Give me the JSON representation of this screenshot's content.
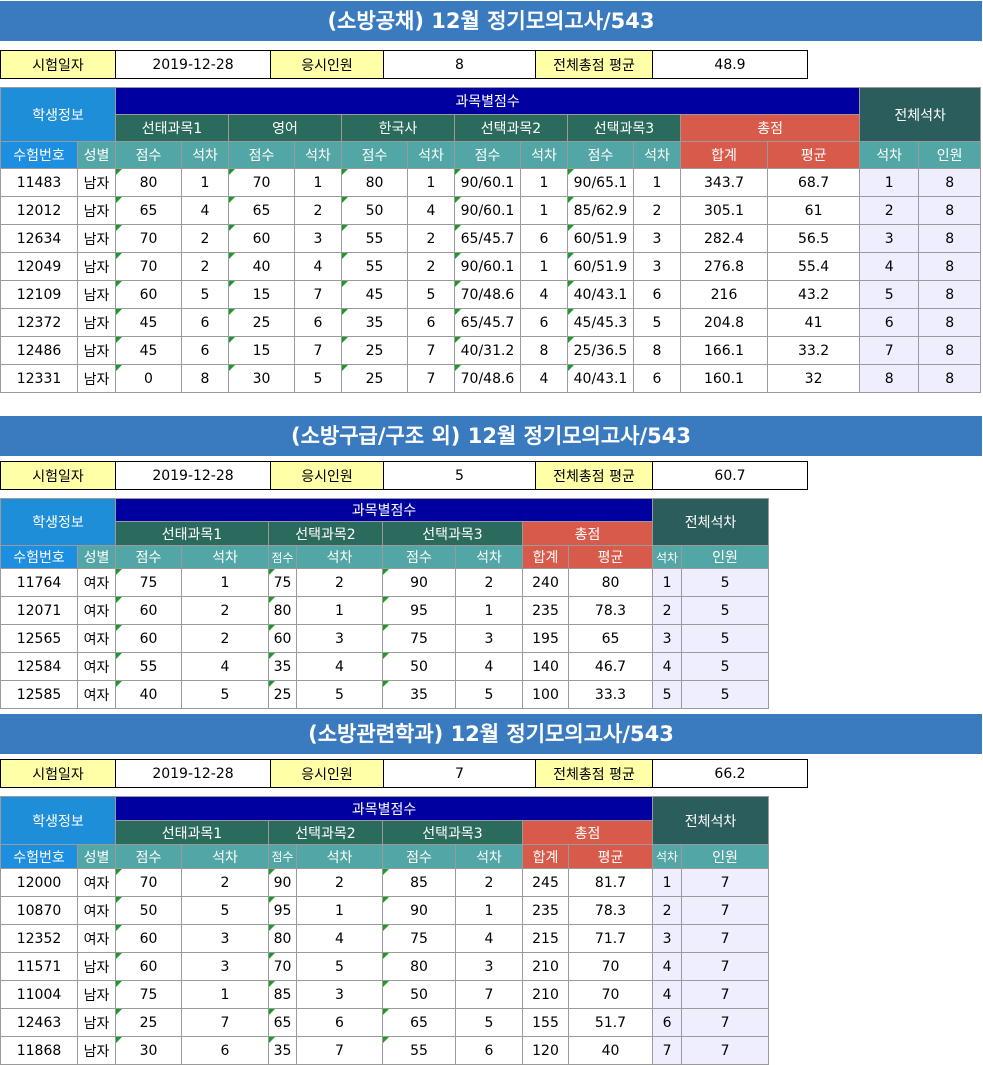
{
  "sections": [
    {
      "title": "(소방공채) 12월 정기모의고사/543",
      "info": {
        "date_label": "시험일자",
        "date": "2019-12-28",
        "count_label": "응시인원",
        "count": "8",
        "avg_label": "전체총점 평균",
        "avg": "48.9"
      },
      "group_student": "학생정보",
      "group_subject": "과목별점수",
      "group_rank": "전체석차",
      "subjects": [
        "선태과목1",
        "영어",
        "한국사",
        "선택과목2",
        "선택과목3"
      ],
      "total_label": "총점",
      "col_id": "수험번호",
      "col_sex": "성별",
      "col_score": "점수",
      "col_rank": "석차",
      "col_sum": "합계",
      "col_avg": "평균",
      "col_trank": "석차",
      "col_people": "인원",
      "rows": [
        [
          "11483",
          "남자",
          "80",
          "1",
          "70",
          "1",
          "80",
          "1",
          "90/60.1",
          "1",
          "90/65.1",
          "1",
          "343.7",
          "68.7",
          "1",
          "8"
        ],
        [
          "12012",
          "남자",
          "65",
          "4",
          "65",
          "2",
          "50",
          "4",
          "90/60.1",
          "1",
          "85/62.9",
          "2",
          "305.1",
          "61",
          "2",
          "8"
        ],
        [
          "12634",
          "남자",
          "70",
          "2",
          "60",
          "3",
          "55",
          "2",
          "65/45.7",
          "6",
          "60/51.9",
          "3",
          "282.4",
          "56.5",
          "3",
          "8"
        ],
        [
          "12049",
          "남자",
          "70",
          "2",
          "40",
          "4",
          "55",
          "2",
          "90/60.1",
          "1",
          "60/51.9",
          "3",
          "276.8",
          "55.4",
          "4",
          "8"
        ],
        [
          "12109",
          "남자",
          "60",
          "5",
          "15",
          "7",
          "45",
          "5",
          "70/48.6",
          "4",
          "40/43.1",
          "6",
          "216",
          "43.2",
          "5",
          "8"
        ],
        [
          "12372",
          "남자",
          "45",
          "6",
          "25",
          "6",
          "35",
          "6",
          "65/45.7",
          "6",
          "45/45.3",
          "5",
          "204.8",
          "41",
          "6",
          "8"
        ],
        [
          "12486",
          "남자",
          "45",
          "6",
          "15",
          "7",
          "25",
          "7",
          "40/31.2",
          "8",
          "25/36.5",
          "8",
          "166.1",
          "33.2",
          "7",
          "8"
        ],
        [
          "12331",
          "남자",
          "0",
          "8",
          "30",
          "5",
          "25",
          "7",
          "70/48.6",
          "4",
          "40/43.1",
          "6",
          "160.1",
          "32",
          "8",
          "8"
        ]
      ]
    },
    {
      "title": "(소방구급/구조 외) 12월 정기모의고사/543",
      "info": {
        "date_label": "시험일자",
        "date": "2019-12-28",
        "count_label": "응시인원",
        "count": "5",
        "avg_label": "전체총점 평균",
        "avg": "60.7"
      },
      "group_student": "학생정보",
      "group_subject": "과목별점수",
      "group_rank": "전체석차",
      "subjects": [
        "선태과목1",
        "선택과목2",
        "선택과목3"
      ],
      "total_label": "총점",
      "col_id": "수험번호",
      "col_sex": "성별",
      "col_score": "점수",
      "col_rank": "석차",
      "col_sum": "합계",
      "col_avg": "평균",
      "col_trank": "석차",
      "col_people": "인원",
      "rows": [
        [
          "11764",
          "여자",
          "75",
          "1",
          "75",
          "2",
          "90",
          "2",
          "240",
          "80",
          "1",
          "5"
        ],
        [
          "12071",
          "여자",
          "60",
          "2",
          "80",
          "1",
          "95",
          "1",
          "235",
          "78.3",
          "2",
          "5"
        ],
        [
          "12565",
          "여자",
          "60",
          "2",
          "60",
          "3",
          "75",
          "3",
          "195",
          "65",
          "3",
          "5"
        ],
        [
          "12584",
          "여자",
          "55",
          "4",
          "35",
          "4",
          "50",
          "4",
          "140",
          "46.7",
          "4",
          "5"
        ],
        [
          "12585",
          "여자",
          "40",
          "5",
          "25",
          "5",
          "35",
          "5",
          "100",
          "33.3",
          "5",
          "5"
        ]
      ]
    },
    {
      "title": "(소방관련학과) 12월 정기모의고사/543",
      "info": {
        "date_label": "시험일자",
        "date": "2019-12-28",
        "count_label": "응시인원",
        "count": "7",
        "avg_label": "전체총점 평균",
        "avg": "66.2"
      },
      "group_student": "학생정보",
      "group_subject": "과목별점수",
      "group_rank": "전체석차",
      "subjects": [
        "선태과목1",
        "선택과목2",
        "선택과목3"
      ],
      "total_label": "총점",
      "col_id": "수험번호",
      "col_sex": "성별",
      "col_score": "점수",
      "col_rank": "석차",
      "col_sum": "합계",
      "col_avg": "평균",
      "col_trank": "석차",
      "col_people": "인원",
      "rows": [
        [
          "12000",
          "여자",
          "70",
          "2",
          "90",
          "2",
          "85",
          "2",
          "245",
          "81.7",
          "1",
          "7"
        ],
        [
          "10870",
          "여자",
          "50",
          "5",
          "95",
          "1",
          "90",
          "1",
          "235",
          "78.3",
          "2",
          "7"
        ],
        [
          "12352",
          "여자",
          "60",
          "3",
          "80",
          "4",
          "75",
          "4",
          "215",
          "71.7",
          "3",
          "7"
        ],
        [
          "11571",
          "남자",
          "60",
          "3",
          "70",
          "5",
          "80",
          "3",
          "210",
          "70",
          "4",
          "7"
        ],
        [
          "11004",
          "남자",
          "75",
          "1",
          "85",
          "3",
          "50",
          "7",
          "210",
          "70",
          "4",
          "7"
        ],
        [
          "12463",
          "남자",
          "25",
          "7",
          "65",
          "6",
          "65",
          "5",
          "155",
          "51.7",
          "6",
          "7"
        ],
        [
          "11868",
          "남자",
          "30",
          "6",
          "35",
          "7",
          "55",
          "6",
          "120",
          "40",
          "7",
          "7"
        ]
      ]
    }
  ]
}
